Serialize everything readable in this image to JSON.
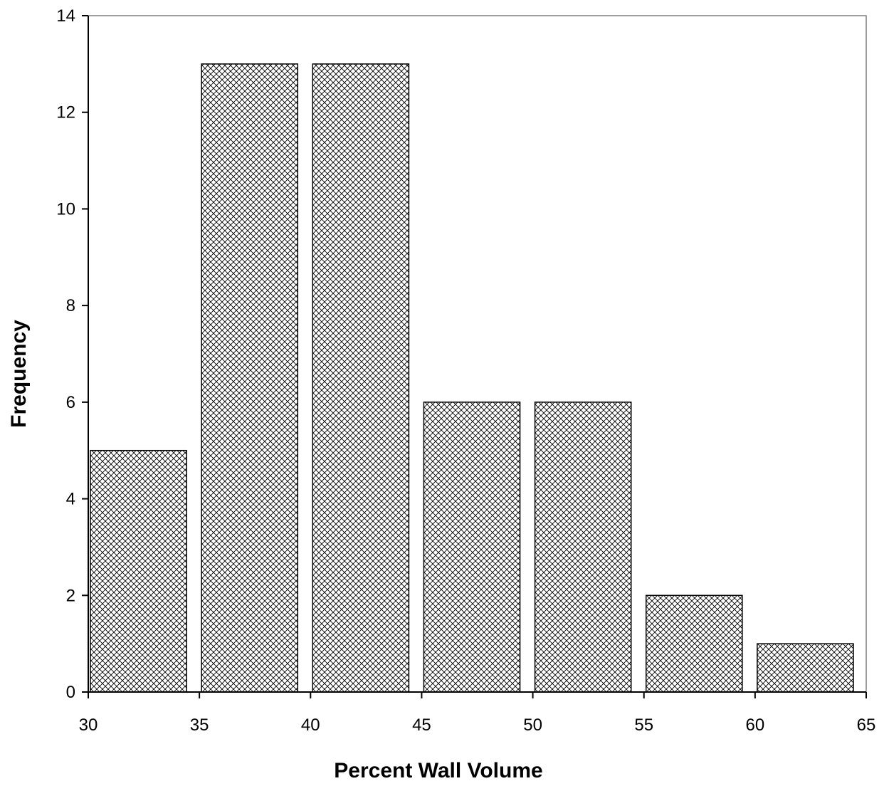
{
  "chart_data": {
    "type": "bar",
    "title": "",
    "xlabel": "Percent Wall Volume",
    "ylabel": "Frequency",
    "bins": [
      {
        "start": 30,
        "end": 35,
        "value": 5
      },
      {
        "start": 35,
        "end": 40,
        "value": 13
      },
      {
        "start": 40,
        "end": 45,
        "value": 13
      },
      {
        "start": 45,
        "end": 50,
        "value": 6
      },
      {
        "start": 50,
        "end": 55,
        "value": 6
      },
      {
        "start": 55,
        "end": 60,
        "value": 2
      },
      {
        "start": 60,
        "end": 65,
        "value": 1
      }
    ],
    "xlim": [
      30,
      65
    ],
    "ylim": [
      0,
      14
    ],
    "xticks": [
      "30",
      "35",
      "40",
      "45",
      "50",
      "55",
      "60",
      "65"
    ],
    "yticks": [
      "0",
      "2",
      "4",
      "6",
      "8",
      "10",
      "12",
      "14"
    ],
    "grid": false,
    "legend": "none",
    "bar_fill": "crosshatch",
    "bar_color": "#000000"
  }
}
